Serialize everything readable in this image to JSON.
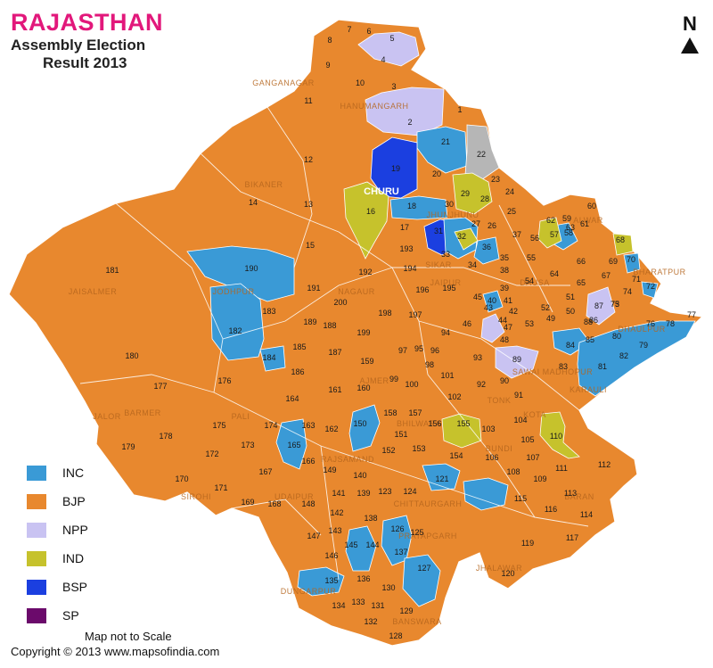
{
  "title": {
    "main": "RAJASTHAN",
    "line2": "Assembly Election",
    "line3": "Result 2013"
  },
  "colors": {
    "title": "#e2187b",
    "INC": "#3a9ad6",
    "BJP": "#e8882e",
    "NPP": "#c9c3f2",
    "IND": "#c6c22c",
    "BSP": "#1b3fe0",
    "SP": "#6b0a6b",
    "grey": "#b6b6b6"
  },
  "north_label": "N",
  "legend": [
    {
      "party": "INC",
      "label": "INC"
    },
    {
      "party": "BJP",
      "label": "BJP"
    },
    {
      "party": "NPP",
      "label": "NPP"
    },
    {
      "party": "IND",
      "label": "IND"
    },
    {
      "party": "BSP",
      "label": "BSP"
    },
    {
      "party": "SP",
      "label": "SP"
    }
  ],
  "footer": {
    "scale_note": "Map not to Scale",
    "copyright": "Copyright © 2013 www.mapsofindia.com"
  },
  "district_labels": [
    "GANGANAGAR",
    "HANUMANGARH",
    "BIKANER",
    "CHURU",
    "JHUNJHUNU",
    "JAISALMER",
    "JODHPUR",
    "NAGAUR",
    "SIKAR",
    "BARMER",
    "PALI",
    "AJMER",
    "TONK",
    "JALOR",
    "SIROHI",
    "UDAIPUR",
    "RAJSAMAND",
    "BHILWARA",
    "CHITTAURGARH",
    "PRATAPGARH",
    "DUNGARPUR",
    "BANSWARA",
    "KOTA",
    "BARAN",
    "JHALAWAR",
    "BUNDI",
    "KARAULI",
    "DHAULPUR",
    "BHARATPUR",
    "ALWAR",
    "DAUSA",
    "JAIPUR",
    "SAWAI MADHOPUR"
  ],
  "constituency_labels": [
    {
      "n": "1"
    },
    {
      "n": "2"
    },
    {
      "n": "3"
    },
    {
      "n": "4"
    },
    {
      "n": "5"
    },
    {
      "n": "6"
    },
    {
      "n": "7"
    },
    {
      "n": "8"
    },
    {
      "n": "9"
    },
    {
      "n": "10"
    },
    {
      "n": "11"
    },
    {
      "n": "12"
    },
    {
      "n": "13"
    },
    {
      "n": "14"
    },
    {
      "n": "15"
    },
    {
      "n": "16"
    },
    {
      "n": "17"
    },
    {
      "n": "18"
    },
    {
      "n": "19"
    },
    {
      "n": "20"
    },
    {
      "n": "21"
    },
    {
      "n": "22"
    },
    {
      "n": "23"
    },
    {
      "n": "24"
    },
    {
      "n": "25"
    },
    {
      "n": "26"
    },
    {
      "n": "27"
    },
    {
      "n": "28"
    },
    {
      "n": "29"
    },
    {
      "n": "30"
    },
    {
      "n": "31"
    },
    {
      "n": "32"
    },
    {
      "n": "33"
    },
    {
      "n": "34"
    },
    {
      "n": "35"
    },
    {
      "n": "36"
    },
    {
      "n": "37"
    },
    {
      "n": "38"
    },
    {
      "n": "39"
    },
    {
      "n": "40"
    },
    {
      "n": "41"
    },
    {
      "n": "42"
    },
    {
      "n": "43"
    },
    {
      "n": "44"
    },
    {
      "n": "45"
    },
    {
      "n": "46"
    },
    {
      "n": "47"
    },
    {
      "n": "48"
    },
    {
      "n": "49"
    },
    {
      "n": "50"
    },
    {
      "n": "51"
    },
    {
      "n": "52"
    },
    {
      "n": "53"
    },
    {
      "n": "54"
    },
    {
      "n": "55"
    },
    {
      "n": "56"
    },
    {
      "n": "57"
    },
    {
      "n": "58"
    },
    {
      "n": "59"
    },
    {
      "n": "60"
    },
    {
      "n": "61"
    },
    {
      "n": "62"
    },
    {
      "n": "63"
    },
    {
      "n": "64"
    },
    {
      "n": "65"
    },
    {
      "n": "66"
    },
    {
      "n": "67"
    },
    {
      "n": "68"
    },
    {
      "n": "69"
    },
    {
      "n": "70"
    },
    {
      "n": "71"
    },
    {
      "n": "72"
    },
    {
      "n": "73"
    },
    {
      "n": "74"
    },
    {
      "n": "75"
    },
    {
      "n": "76"
    },
    {
      "n": "77"
    },
    {
      "n": "78"
    },
    {
      "n": "79"
    },
    {
      "n": "80"
    },
    {
      "n": "81"
    },
    {
      "n": "82"
    },
    {
      "n": "83"
    },
    {
      "n": "84"
    },
    {
      "n": "85"
    },
    {
      "n": "86"
    },
    {
      "n": "87"
    },
    {
      "n": "88"
    },
    {
      "n": "89"
    },
    {
      "n": "90"
    },
    {
      "n": "91"
    },
    {
      "n": "92"
    },
    {
      "n": "93"
    },
    {
      "n": "94"
    },
    {
      "n": "95"
    },
    {
      "n": "96"
    },
    {
      "n": "97"
    },
    {
      "n": "98"
    },
    {
      "n": "99"
    },
    {
      "n": "100"
    },
    {
      "n": "101"
    },
    {
      "n": "102"
    },
    {
      "n": "103"
    },
    {
      "n": "104"
    },
    {
      "n": "105"
    },
    {
      "n": "106"
    },
    {
      "n": "107"
    },
    {
      "n": "108"
    },
    {
      "n": "109"
    },
    {
      "n": "110"
    },
    {
      "n": "111"
    },
    {
      "n": "112"
    },
    {
      "n": "113"
    },
    {
      "n": "114"
    },
    {
      "n": "115"
    },
    {
      "n": "116"
    },
    {
      "n": "117"
    },
    {
      "n": "119"
    },
    {
      "n": "120"
    },
    {
      "n": "121"
    },
    {
      "n": "123"
    },
    {
      "n": "124"
    },
    {
      "n": "125"
    },
    {
      "n": "126"
    },
    {
      "n": "127"
    },
    {
      "n": "128"
    },
    {
      "n": "129"
    },
    {
      "n": "130"
    },
    {
      "n": "131"
    },
    {
      "n": "132"
    },
    {
      "n": "133"
    },
    {
      "n": "134"
    },
    {
      "n": "135"
    },
    {
      "n": "136"
    },
    {
      "n": "137"
    },
    {
      "n": "138"
    },
    {
      "n": "139"
    },
    {
      "n": "140"
    },
    {
      "n": "141"
    },
    {
      "n": "142"
    },
    {
      "n": "143"
    },
    {
      "n": "144"
    },
    {
      "n": "145"
    },
    {
      "n": "146"
    },
    {
      "n": "147"
    },
    {
      "n": "148"
    },
    {
      "n": "149"
    },
    {
      "n": "150"
    },
    {
      "n": "151"
    },
    {
      "n": "152"
    },
    {
      "n": "153"
    },
    {
      "n": "154"
    },
    {
      "n": "155"
    },
    {
      "n": "156"
    },
    {
      "n": "157"
    },
    {
      "n": "158"
    },
    {
      "n": "159"
    },
    {
      "n": "160"
    },
    {
      "n": "161"
    },
    {
      "n": "162"
    },
    {
      "n": "163"
    },
    {
      "n": "164"
    },
    {
      "n": "165"
    },
    {
      "n": "166"
    },
    {
      "n": "167"
    },
    {
      "n": "168"
    },
    {
      "n": "169"
    },
    {
      "n": "170"
    },
    {
      "n": "171"
    },
    {
      "n": "172"
    },
    {
      "n": "173"
    },
    {
      "n": "174"
    },
    {
      "n": "175"
    },
    {
      "n": "176"
    },
    {
      "n": "177"
    },
    {
      "n": "178"
    },
    {
      "n": "179"
    },
    {
      "n": "180"
    },
    {
      "n": "181"
    },
    {
      "n": "182"
    },
    {
      "n": "183"
    },
    {
      "n": "184"
    },
    {
      "n": "185"
    },
    {
      "n": "186"
    },
    {
      "n": "187"
    },
    {
      "n": "188"
    },
    {
      "n": "189"
    },
    {
      "n": "190"
    },
    {
      "n": "191"
    },
    {
      "n": "192"
    },
    {
      "n": "193"
    },
    {
      "n": "194"
    },
    {
      "n": "195"
    },
    {
      "n": "196"
    },
    {
      "n": "197"
    },
    {
      "n": "198"
    },
    {
      "n": "199"
    },
    {
      "n": "200"
    }
  ]
}
